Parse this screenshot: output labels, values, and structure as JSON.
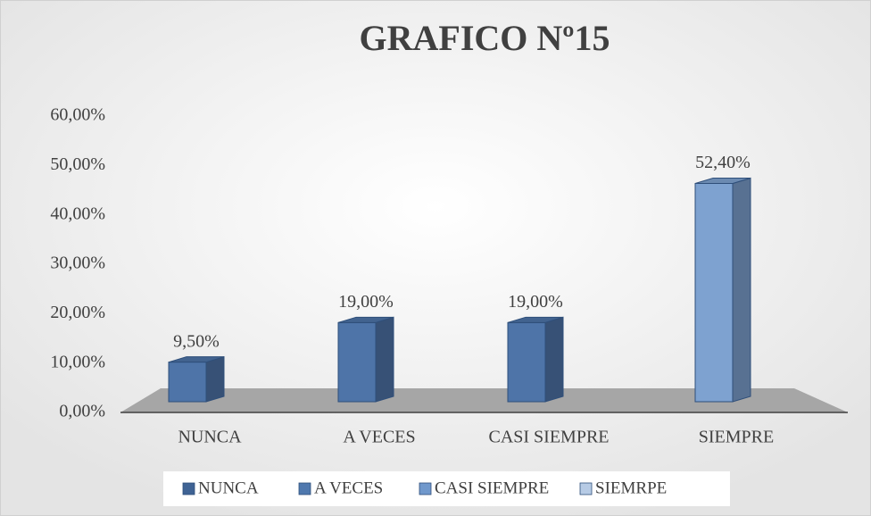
{
  "chart_data": {
    "type": "bar3d",
    "title": "GRAFICO Nº15",
    "categories": [
      "NUNCA",
      "A VECES",
      "CASI SIEMPRE",
      "SIEMPRE"
    ],
    "values": [
      9.5,
      19,
      19,
      52.4
    ],
    "value_labels": [
      "9,50%",
      "19,00%",
      "19,00%",
      "52,40%"
    ],
    "colors": [
      "#4e74a8",
      "#4e74a8",
      "#4e74a8",
      "#7ea2d0"
    ],
    "ylim": [
      0,
      60
    ],
    "yticks": [
      {
        "value": 0,
        "label": "0,00%"
      },
      {
        "value": 10,
        "label": "10,00%"
      },
      {
        "value": 20,
        "label": "20,00%"
      },
      {
        "value": 30,
        "label": "30,00%"
      },
      {
        "value": 40,
        "label": "40,00%"
      },
      {
        "value": 50,
        "label": "50,00%"
      },
      {
        "value": 60,
        "label": "60,00%"
      }
    ],
    "legend": [
      {
        "name": "NUNCA",
        "color": "#3f6394"
      },
      {
        "name": "A VECES",
        "color": "#4f78ae"
      },
      {
        "name": "CASI SIEMPRE",
        "color": "#7098cc"
      },
      {
        "name": "SIEMRPE",
        "color": "#b7cbe5"
      }
    ]
  }
}
